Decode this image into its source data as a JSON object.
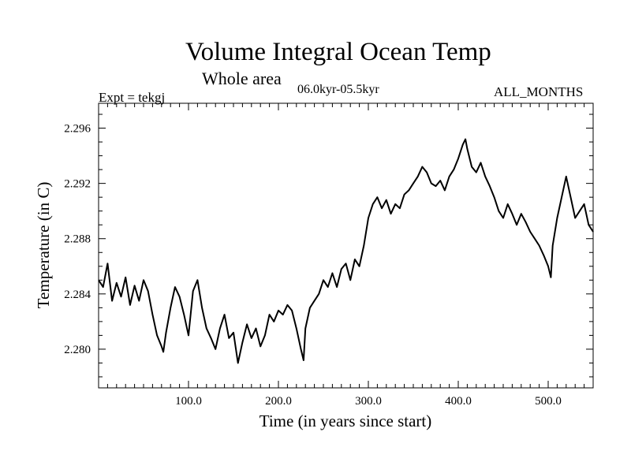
{
  "header": {
    "title": "Volume Integral Ocean Temp",
    "subtitle": "Whole area",
    "period": "06.0kyr-05.5kyr",
    "expt": "Expt = tekgj",
    "months": "ALL_MONTHS"
  },
  "chart_data": {
    "type": "line",
    "title": "Volume Integral Ocean Temp",
    "subtitle": "Whole area",
    "xlabel": "Time (in years since start)",
    "ylabel": "Temperature (in C)",
    "xlim": [
      0,
      550
    ],
    "ylim": [
      2.2772,
      2.2978
    ],
    "x_ticks": [
      100,
      200,
      300,
      400,
      500
    ],
    "x_tick_labels": [
      "100.0",
      "200.0",
      "300.0",
      "400.0",
      "500.0"
    ],
    "y_ticks": [
      2.28,
      2.284,
      2.288,
      2.292,
      2.296
    ],
    "y_tick_labels": [
      "2.280",
      "2.284",
      "2.288",
      "2.292",
      "2.296"
    ],
    "grid": false,
    "series": [
      {
        "name": "tekgj",
        "x": [
          0,
          5,
          10,
          15,
          20,
          25,
          30,
          35,
          40,
          45,
          50,
          55,
          60,
          65,
          70,
          72,
          75,
          80,
          85,
          90,
          95,
          100,
          105,
          110,
          115,
          120,
          125,
          130,
          135,
          140,
          145,
          150,
          155,
          160,
          165,
          170,
          175,
          180,
          185,
          190,
          195,
          200,
          205,
          210,
          215,
          220,
          225,
          228,
          230,
          235,
          240,
          245,
          250,
          255,
          260,
          265,
          270,
          275,
          280,
          285,
          290,
          295,
          300,
          305,
          310,
          315,
          320,
          325,
          330,
          335,
          340,
          345,
          350,
          355,
          360,
          365,
          370,
          375,
          380,
          385,
          390,
          395,
          400,
          405,
          408,
          410,
          415,
          420,
          425,
          430,
          435,
          440,
          445,
          450,
          455,
          460,
          465,
          470,
          475,
          480,
          485,
          490,
          495,
          500,
          503,
          505,
          510,
          515,
          520,
          525,
          530,
          535,
          540,
          545,
          550
        ],
        "values": [
          2.285,
          2.2845,
          2.2862,
          2.2835,
          2.2848,
          2.2838,
          2.2852,
          2.2832,
          2.2846,
          2.2835,
          2.285,
          2.2842,
          2.2825,
          2.281,
          2.2802,
          2.2798,
          2.2812,
          2.283,
          2.2845,
          2.2838,
          2.2825,
          2.281,
          2.2842,
          2.285,
          2.283,
          2.2815,
          2.2808,
          2.28,
          2.2815,
          2.2825,
          2.2808,
          2.2812,
          2.279,
          2.2805,
          2.2818,
          2.2808,
          2.2815,
          2.2802,
          2.281,
          2.2825,
          2.282,
          2.2828,
          2.2825,
          2.2832,
          2.2828,
          2.2815,
          2.28,
          2.2792,
          2.2815,
          2.283,
          2.2835,
          2.284,
          2.285,
          2.2845,
          2.2855,
          2.2845,
          2.2858,
          2.2862,
          2.285,
          2.2865,
          2.286,
          2.2875,
          2.2895,
          2.2905,
          2.291,
          2.2902,
          2.2908,
          2.2898,
          2.2905,
          2.2902,
          2.2912,
          2.2915,
          2.292,
          2.2925,
          2.2932,
          2.2928,
          2.292,
          2.2918,
          2.2922,
          2.2915,
          2.2925,
          2.293,
          2.2938,
          2.2948,
          2.2952,
          2.2945,
          2.2932,
          2.2928,
          2.2935,
          2.2925,
          2.2918,
          2.291,
          2.29,
          2.2895,
          2.2905,
          2.2898,
          2.289,
          2.2898,
          2.2892,
          2.2885,
          2.288,
          2.2875,
          2.2868,
          2.286,
          2.2852,
          2.2875,
          2.2895,
          2.291,
          2.2925,
          2.291,
          2.2895,
          2.29,
          2.2905,
          2.289,
          2.2885
        ]
      }
    ]
  }
}
